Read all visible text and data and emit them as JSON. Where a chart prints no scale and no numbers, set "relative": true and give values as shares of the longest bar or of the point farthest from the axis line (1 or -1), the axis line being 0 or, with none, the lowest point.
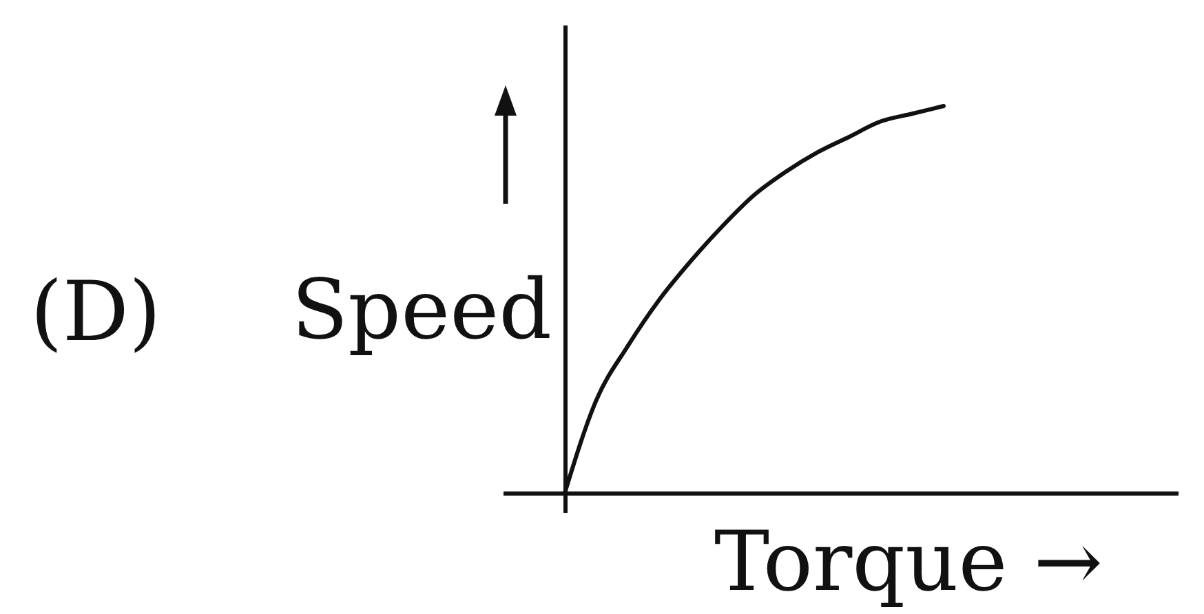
{
  "chart_data": {
    "type": "line",
    "relative": true,
    "xlabel": "Torque →",
    "ylabel": "Speed",
    "annotations": [
      "(D)"
    ],
    "categories": [
      null,
      null,
      null,
      null,
      null,
      null,
      null,
      null,
      null,
      null,
      null,
      null,
      null
    ],
    "values": [
      0,
      0.24,
      0.38,
      0.5,
      0.6,
      0.69,
      0.77,
      0.83,
      0.88,
      0.92,
      0.96,
      0.98,
      1
    ],
    "color": "#111111"
  }
}
